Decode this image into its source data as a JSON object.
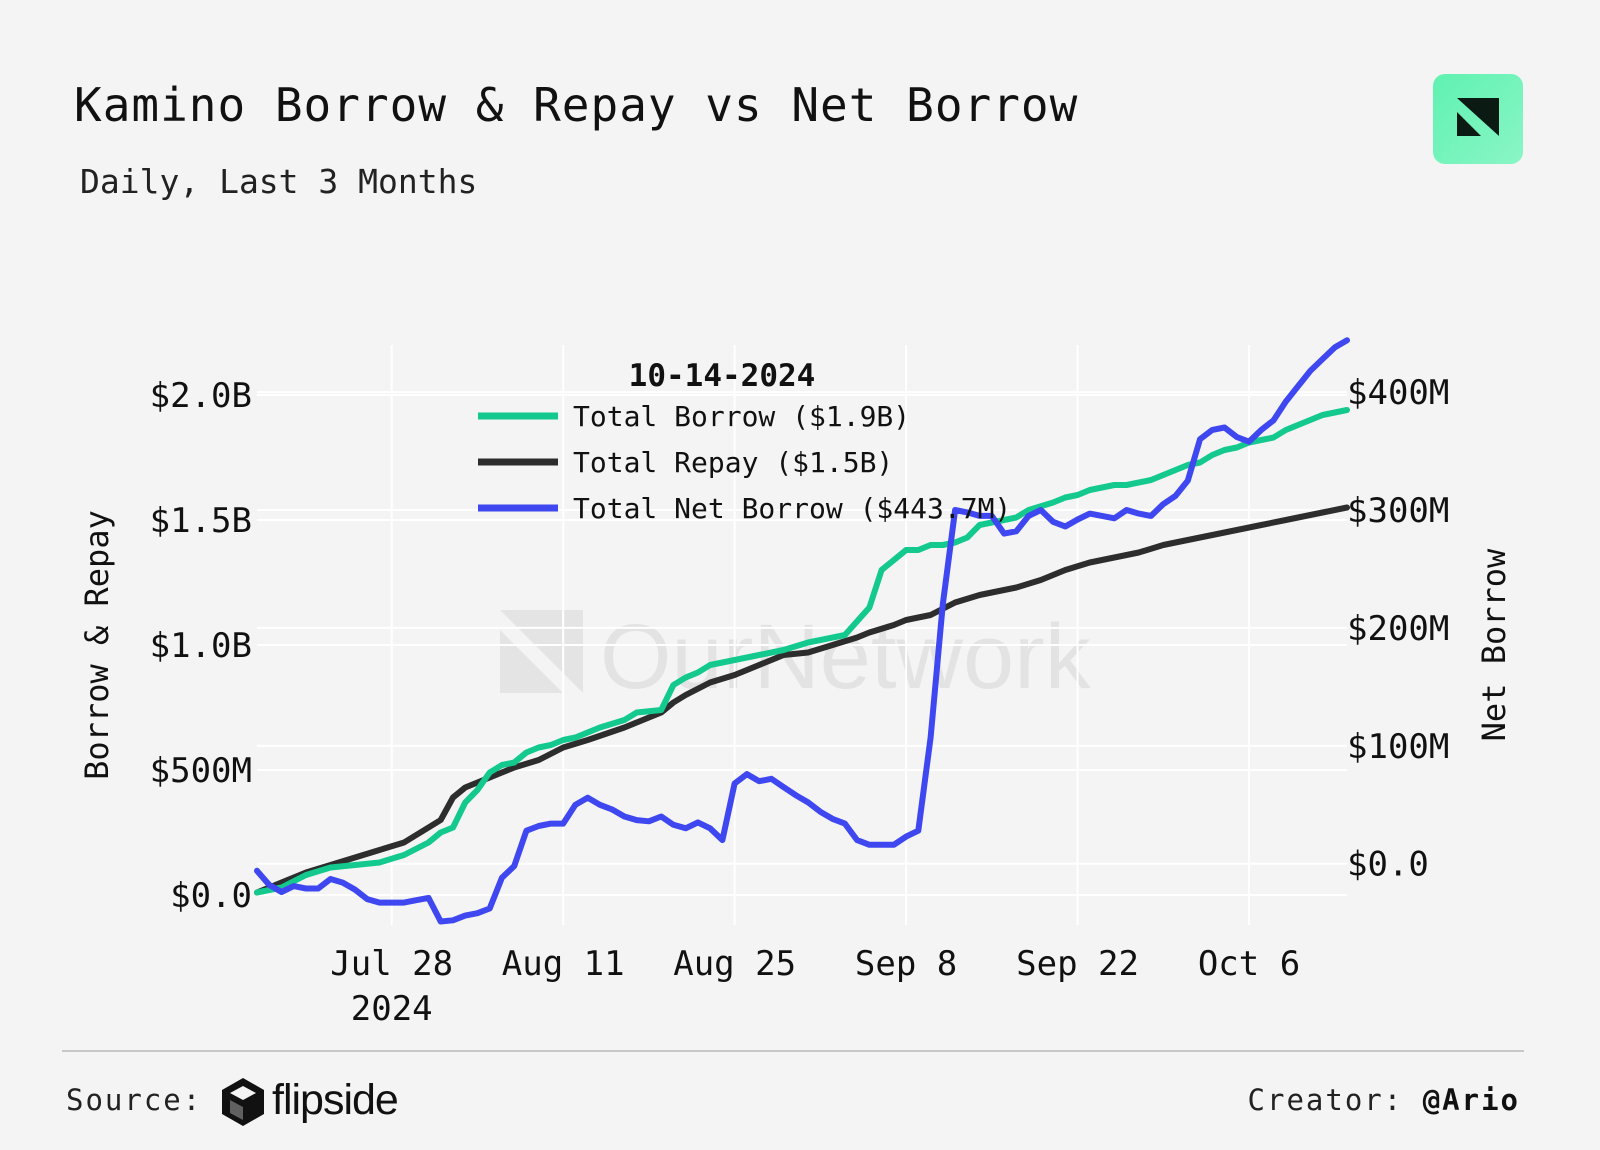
{
  "header": {
    "title": "Kamino Borrow & Repay vs Net Borrow",
    "subtitle": "Daily, Last 3 Months"
  },
  "footer": {
    "source_label": "Source:",
    "source_brand": "flipside",
    "creator_label": "Creator:",
    "creator_handle": "@Ario"
  },
  "colors": {
    "borrow": "#14c98d",
    "repay": "#2d2d2d",
    "net": "#3f48f0",
    "grid": "#ffffff",
    "background": "#f4f4f4"
  },
  "chart_data": {
    "type": "line",
    "title": "Kamino Borrow & Repay vs Net Borrow",
    "subtitle": "Daily, Last 3 Months",
    "watermark": "OurNetwork",
    "ylabel": "Borrow & Repay",
    "y2label": "Net Borrow",
    "ylim": [
      -0.12,
      2.2
    ],
    "y2lim": [
      -52,
      440
    ],
    "yticks": [
      0,
      0.5,
      1.0,
      1.5,
      2.0
    ],
    "ytick_labels": [
      "$0.0",
      "$500M",
      "$1.0B",
      "$1.5B",
      "$2.0B"
    ],
    "y2ticks": [
      0,
      100,
      200,
      300,
      400
    ],
    "y2tick_labels": [
      "$0.0",
      "$100M",
      "$200M",
      "$300M",
      "$400M"
    ],
    "xticks": [
      16,
      30,
      44,
      58,
      72,
      86
    ],
    "xtick_labels": [
      "Jul 28",
      "Aug 11",
      "Aug 25",
      "Sep 8",
      "Sep 22",
      "Oct 6"
    ],
    "xtick_year": "2024",
    "legend": {
      "title": "10-14-2024",
      "entries": [
        "Total Borrow ($1.9B)",
        "Total Repay ($1.5B)",
        "Total Net Borrow ($443.7M)"
      ],
      "position": "top-left"
    },
    "series": [
      {
        "name": "Total Borrow",
        "axis": "left",
        "x": [
          5,
          7,
          9,
          11,
          13,
          15,
          17,
          19,
          20,
          21,
          22,
          23,
          24,
          25,
          26,
          27,
          28,
          29,
          30,
          31,
          33,
          35,
          36,
          38,
          39,
          40,
          41,
          42,
          43,
          44,
          45,
          46,
          47,
          48,
          50,
          53,
          55,
          56,
          58,
          59,
          60,
          61,
          62,
          63,
          64,
          65,
          66,
          67,
          68,
          70,
          71,
          72,
          73,
          74,
          75,
          76,
          78,
          79,
          80,
          81,
          82,
          83,
          84,
          85,
          86,
          87,
          88,
          89,
          90,
          91,
          92,
          93,
          94
        ],
        "values": [
          0.01,
          0.03,
          0.08,
          0.11,
          0.12,
          0.13,
          0.16,
          0.21,
          0.25,
          0.27,
          0.37,
          0.42,
          0.49,
          0.52,
          0.53,
          0.57,
          0.59,
          0.6,
          0.62,
          0.63,
          0.67,
          0.7,
          0.73,
          0.74,
          0.84,
          0.87,
          0.89,
          0.92,
          0.93,
          0.94,
          0.95,
          0.96,
          0.97,
          0.98,
          1.01,
          1.04,
          1.15,
          1.3,
          1.38,
          1.38,
          1.4,
          1.4,
          1.41,
          1.43,
          1.48,
          1.49,
          1.5,
          1.51,
          1.54,
          1.57,
          1.59,
          1.6,
          1.62,
          1.63,
          1.64,
          1.64,
          1.66,
          1.68,
          1.7,
          1.72,
          1.73,
          1.76,
          1.78,
          1.79,
          1.81,
          1.82,
          1.83,
          1.86,
          1.88,
          1.9,
          1.92,
          1.93,
          1.94
        ]
      },
      {
        "name": "Total Repay",
        "axis": "left",
        "x": [
          5,
          7,
          9,
          11,
          13,
          15,
          17,
          19,
          20,
          21,
          22,
          24,
          25,
          26,
          28,
          30,
          32,
          35,
          38,
          39,
          40,
          42,
          44,
          45,
          46,
          47,
          48,
          50,
          52,
          54,
          55,
          57,
          58,
          59,
          60,
          62,
          64,
          65,
          67,
          69,
          70,
          71,
          73,
          75,
          77,
          79,
          80,
          82,
          83,
          85,
          87,
          89,
          90,
          92,
          94
        ],
        "values": [
          0.01,
          0.05,
          0.09,
          0.12,
          0.15,
          0.18,
          0.21,
          0.27,
          0.3,
          0.39,
          0.43,
          0.47,
          0.49,
          0.51,
          0.54,
          0.59,
          0.62,
          0.67,
          0.73,
          0.77,
          0.8,
          0.85,
          0.88,
          0.9,
          0.92,
          0.94,
          0.96,
          0.97,
          1.0,
          1.03,
          1.05,
          1.08,
          1.1,
          1.11,
          1.12,
          1.17,
          1.2,
          1.21,
          1.23,
          1.26,
          1.28,
          1.3,
          1.33,
          1.35,
          1.37,
          1.4,
          1.41,
          1.43,
          1.44,
          1.46,
          1.48,
          1.5,
          1.51,
          1.53,
          1.55
        ]
      },
      {
        "name": "Total Net Borrow",
        "axis": "right",
        "x": [
          5,
          6,
          7,
          8,
          9,
          10,
          11,
          12,
          13,
          14,
          15,
          16,
          17,
          18,
          19,
          20,
          21,
          22,
          23,
          24,
          25,
          26,
          27,
          28,
          29,
          30,
          31,
          32,
          33,
          34,
          35,
          36,
          37,
          38,
          39,
          40,
          41,
          42,
          43,
          44,
          45,
          46,
          47,
          48,
          49,
          50,
          51,
          52,
          53,
          54,
          55,
          56,
          57,
          58,
          59,
          60,
          61,
          62,
          63,
          64,
          65,
          66,
          67,
          68,
          69,
          70,
          71,
          72,
          73,
          74,
          75,
          76,
          77,
          78,
          79,
          80,
          81,
          82,
          83,
          84,
          85,
          86,
          87,
          88,
          89,
          90,
          91,
          92,
          93,
          94
        ],
        "values": [
          -6,
          -18,
          -24,
          -19,
          -21,
          -21,
          -13,
          -16,
          -22,
          -30,
          -33,
          -33,
          -33,
          -31,
          -29,
          -49,
          -48,
          -44,
          -42,
          -38,
          -12,
          -2,
          28,
          32,
          34,
          34,
          50,
          56,
          50,
          46,
          40,
          37,
          36,
          40,
          33,
          30,
          35,
          30,
          20,
          68,
          76,
          70,
          72,
          65,
          58,
          52,
          44,
          38,
          34,
          20,
          16,
          16,
          16,
          23,
          28,
          107,
          220,
          300,
          298,
          295,
          295,
          280,
          282,
          295,
          300,
          290,
          286,
          292,
          297,
          295,
          293,
          300,
          297,
          295,
          305,
          312,
          325,
          360,
          368,
          370,
          362,
          358,
          368,
          376,
          392,
          405,
          418,
          428,
          438,
          444
        ]
      }
    ]
  }
}
